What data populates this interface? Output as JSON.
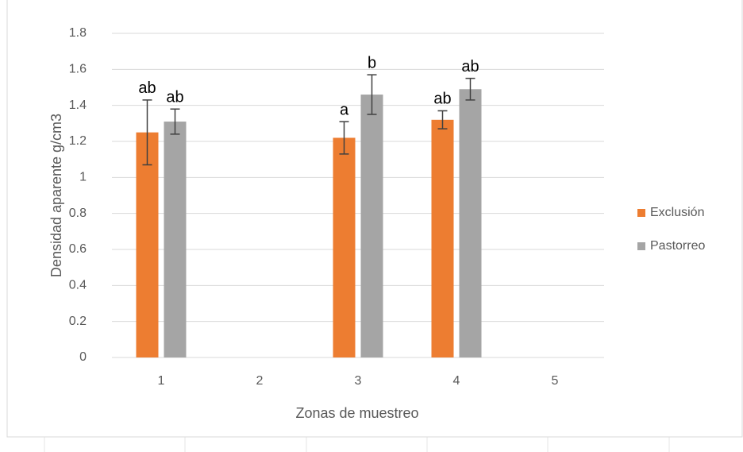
{
  "chart_data": {
    "type": "bar",
    "x_label": "Zonas de muestreo",
    "y_label": "Densidad aparente g/cm3",
    "categories": [
      "1",
      "2",
      "3",
      "4",
      "5"
    ],
    "series": [
      {
        "name": "Exclusión",
        "color": "#ed7d31",
        "values": [
          1.25,
          null,
          1.22,
          1.32,
          null
        ],
        "errors": [
          0.18,
          null,
          0.09,
          0.05,
          null
        ],
        "labels": [
          "ab",
          null,
          "a",
          "ab",
          null
        ]
      },
      {
        "name": "Pastorreo",
        "color": "#a5a5a5",
        "values": [
          1.31,
          null,
          1.46,
          1.49,
          null
        ],
        "errors": [
          0.07,
          null,
          0.11,
          0.06,
          null
        ],
        "labels": [
          "ab",
          null,
          "b",
          "ab",
          null
        ]
      }
    ],
    "ylim": [
      0,
      1.8
    ],
    "yticks": [
      0,
      0.2,
      0.4,
      0.6,
      0.8,
      1,
      1.2,
      1.4,
      1.6,
      1.8
    ],
    "grid": true,
    "legend": "right"
  }
}
